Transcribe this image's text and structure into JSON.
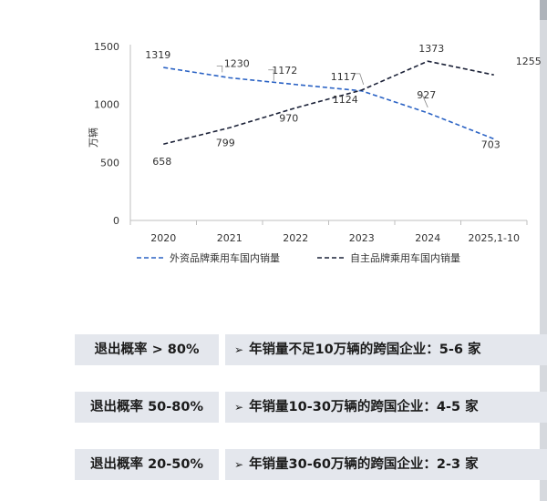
{
  "chart_data": {
    "type": "line",
    "categories": [
      "2020",
      "2021",
      "2022",
      "2023",
      "2024",
      "2025,1-10"
    ],
    "ylabel": "万辆",
    "ylim": [
      0,
      1500
    ],
    "yticks": [
      0,
      500,
      1000,
      1500
    ],
    "grid": false,
    "legend_position": "bottom",
    "series": [
      {
        "name": "外资品牌乘用车国内销量",
        "values": [
          1319,
          1230,
          1172,
          1117,
          927,
          703
        ],
        "color": "#2a62c4",
        "dash": "dashed"
      },
      {
        "name": "自主品牌乘用车国内销量",
        "values": [
          658,
          799,
          970,
          1124,
          1373,
          1255
        ],
        "color": "#1c2238",
        "dash": "dashed"
      }
    ]
  },
  "bottom_rows": [
    {
      "label": "退出概率 > 80%",
      "text": "年销量不足10万辆的跨国企业：5-6 家"
    },
    {
      "label": "退出概率 50-80%",
      "text": "年销量10-30万辆的跨国企业：4-5 家"
    },
    {
      "label": "退出概率 20-50%",
      "text": "年销量30-60万辆的跨国企业：2-3 家"
    }
  ],
  "arrow_glyph": "➢"
}
